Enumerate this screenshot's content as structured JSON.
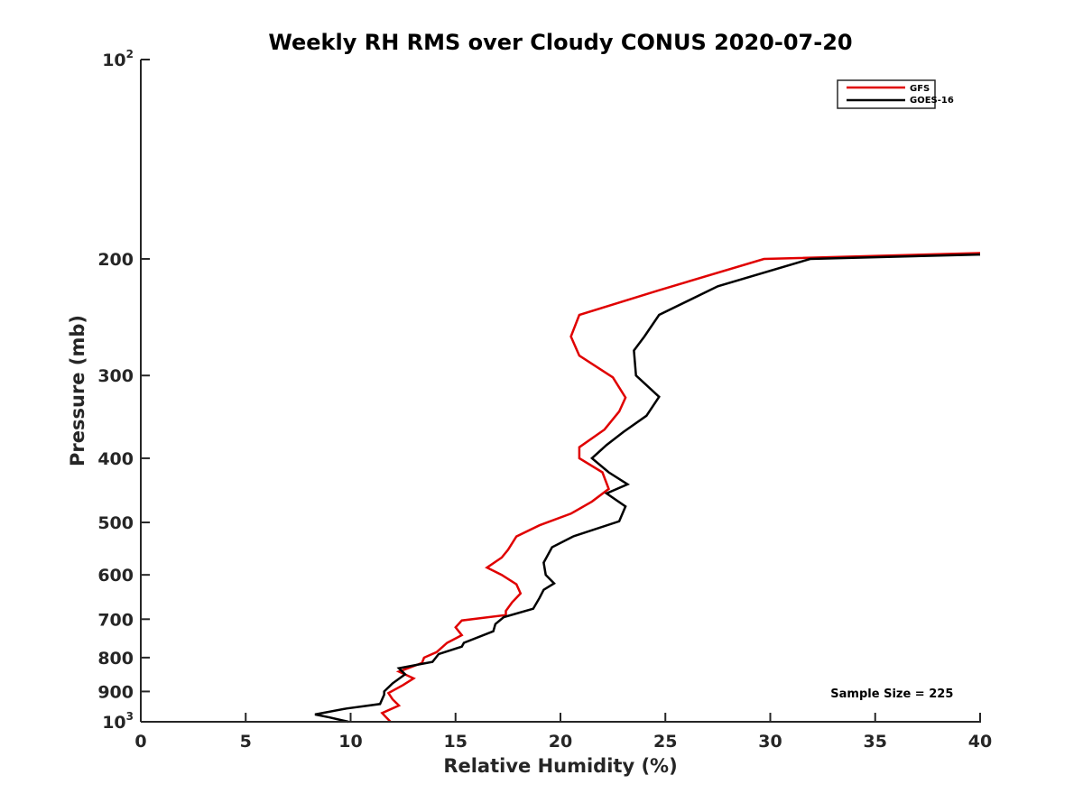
{
  "chart_data": {
    "type": "line",
    "title": "Weekly RH RMS over Cloudy CONUS 2020-07-20",
    "xlabel": "Relative Humidity (%)",
    "ylabel": "Pressure (mb)",
    "xlim": [
      0,
      40
    ],
    "ylim": [
      100,
      1000
    ],
    "y_scale": "log",
    "y_reversed": true,
    "grid": false,
    "legend_position": "top-right",
    "x_ticks": [
      "0",
      "5",
      "10",
      "15",
      "20",
      "25",
      "30",
      "35",
      "40"
    ],
    "x_tick_values": [
      0,
      5,
      10,
      15,
      20,
      25,
      30,
      35,
      40
    ],
    "y_ticks": [
      {
        "value": 100,
        "base": "10",
        "sup": "2"
      },
      {
        "value": 200,
        "label": "200"
      },
      {
        "value": 300,
        "label": "300"
      },
      {
        "value": 400,
        "label": "400"
      },
      {
        "value": 500,
        "label": "500"
      },
      {
        "value": 600,
        "label": "600"
      },
      {
        "value": 700,
        "label": "700"
      },
      {
        "value": 800,
        "label": "800"
      },
      {
        "value": 900,
        "label": "900"
      },
      {
        "value": 1000,
        "base": "10",
        "sup": "3"
      }
    ],
    "series": [
      {
        "name": "GFS",
        "color": "#e00000",
        "points": [
          [
            40.0,
            196
          ],
          [
            29.7,
            200
          ],
          [
            24.7,
            223
          ],
          [
            20.9,
            243
          ],
          [
            20.5,
            262
          ],
          [
            20.9,
            280
          ],
          [
            22.5,
            302
          ],
          [
            23.1,
            324
          ],
          [
            22.8,
            340
          ],
          [
            22.1,
            362
          ],
          [
            20.9,
            385
          ],
          [
            20.9,
            400
          ],
          [
            22.0,
            420
          ],
          [
            22.3,
            445
          ],
          [
            21.5,
            465
          ],
          [
            20.5,
            485
          ],
          [
            19.0,
            505
          ],
          [
            17.9,
            525
          ],
          [
            17.5,
            550
          ],
          [
            17.2,
            565
          ],
          [
            16.5,
            585
          ],
          [
            17.2,
            600
          ],
          [
            17.9,
            620
          ],
          [
            18.1,
            640
          ],
          [
            17.7,
            660
          ],
          [
            17.4,
            680
          ],
          [
            17.4,
            690
          ],
          [
            15.3,
            703
          ],
          [
            15.0,
            720
          ],
          [
            15.3,
            740
          ],
          [
            14.6,
            760
          ],
          [
            14.1,
            785
          ],
          [
            13.5,
            800
          ],
          [
            13.4,
            815
          ],
          [
            12.3,
            840
          ],
          [
            13.0,
            860
          ],
          [
            12.5,
            880
          ],
          [
            11.8,
            905
          ],
          [
            12.0,
            925
          ],
          [
            12.3,
            945
          ],
          [
            11.5,
            970
          ],
          [
            11.7,
            985
          ],
          [
            11.9,
            1000
          ]
        ]
      },
      {
        "name": "GOES-16",
        "color": "#000000",
        "points": [
          [
            40.0,
            197
          ],
          [
            31.9,
            200
          ],
          [
            27.5,
            220
          ],
          [
            24.7,
            243
          ],
          [
            24.0,
            262
          ],
          [
            23.5,
            275
          ],
          [
            23.6,
            300
          ],
          [
            24.7,
            323
          ],
          [
            24.1,
            345
          ],
          [
            23.0,
            365
          ],
          [
            22.2,
            382
          ],
          [
            21.5,
            400
          ],
          [
            22.3,
            420
          ],
          [
            23.2,
            438
          ],
          [
            22.2,
            452
          ],
          [
            23.1,
            473
          ],
          [
            22.8,
            498
          ],
          [
            20.6,
            525
          ],
          [
            19.6,
            545
          ],
          [
            19.2,
            575
          ],
          [
            19.3,
            600
          ],
          [
            19.7,
            618
          ],
          [
            19.2,
            632
          ],
          [
            19.0,
            650
          ],
          [
            18.7,
            675
          ],
          [
            17.3,
            695
          ],
          [
            16.9,
            712
          ],
          [
            16.8,
            730
          ],
          [
            15.4,
            760
          ],
          [
            15.3,
            770
          ],
          [
            14.2,
            790
          ],
          [
            13.9,
            812
          ],
          [
            12.3,
            830
          ],
          [
            12.6,
            848
          ],
          [
            12.0,
            875
          ],
          [
            11.6,
            900
          ],
          [
            11.6,
            910
          ],
          [
            11.4,
            940
          ],
          [
            9.8,
            955
          ],
          [
            8.3,
            975
          ],
          [
            9.0,
            985
          ],
          [
            9.9,
            1000
          ]
        ]
      }
    ],
    "annotations": [
      {
        "text": "Sample Size = 225",
        "x": 35.8,
        "y": 908
      }
    ]
  }
}
